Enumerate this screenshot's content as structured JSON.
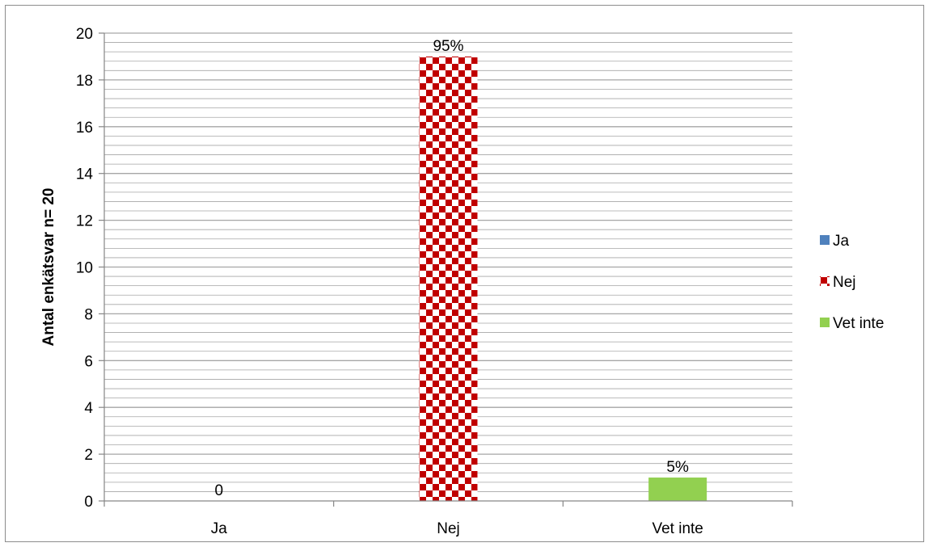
{
  "chart_data": {
    "type": "bar",
    "title": "",
    "xlabel": "",
    "ylabel": "Antal enkätsvar n= 20",
    "categories": [
      "Ja",
      "Nej",
      "Vet inte"
    ],
    "values": [
      0,
      19,
      1
    ],
    "data_labels": [
      "0",
      "95%",
      "5%"
    ],
    "ylim": [
      0,
      20
    ],
    "yticks": [
      "0",
      "2",
      "4",
      "6",
      "8",
      "10",
      "12",
      "14",
      "16",
      "18",
      "20"
    ],
    "grid": true,
    "legend_position": "right",
    "legend": [
      "Ja",
      "Nej",
      "Vet inte"
    ],
    "colors": {
      "Ja": "#4f81bd",
      "Nej": "#c00000",
      "Vet inte": "#92d050",
      "grid": "#a6a6a6",
      "axis": "#868686"
    },
    "patterns": {
      "Nej": "checkerboard"
    }
  }
}
